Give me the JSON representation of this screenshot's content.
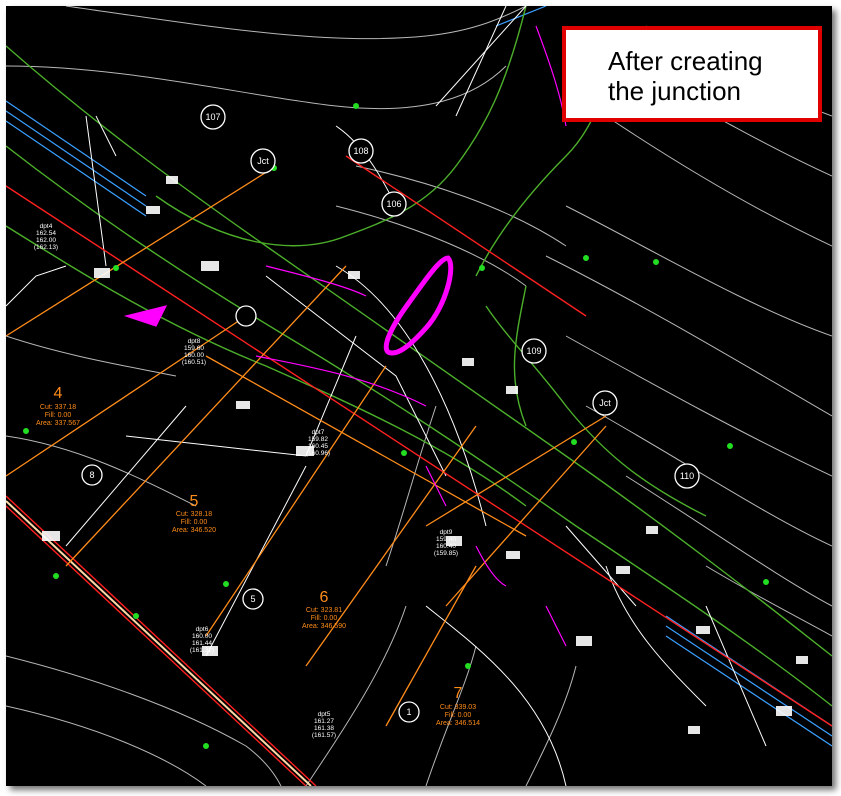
{
  "callout": {
    "line1": "After creating",
    "line2": "the junction"
  },
  "colors": {
    "background": "#000000",
    "contour": "#d8d8d8",
    "road_edge": "#4caf2a",
    "centerline": "#ff2020",
    "parcel": "#ff8c1a",
    "junction_highlight": "#ff00ff",
    "callout_border": "#e00000",
    "point_marker": "#22dd22",
    "blue_line": "#3aa0ff"
  },
  "node_labels": [
    "107",
    "Jct",
    "108",
    "109",
    "Jct",
    "110",
    "8",
    "5",
    "1",
    "106"
  ],
  "lots": [
    {
      "number": "4",
      "cut": "Cut: 337.18",
      "fill": "Fill: 0.00",
      "area": "Area: 337.567"
    },
    {
      "number": "5",
      "cut": "Cut: 328.18",
      "fill": "Fill: 0.00",
      "area": "Area: 346.520"
    },
    {
      "number": "6",
      "cut": "Cut: 323.81",
      "fill": "Fill: 0.00",
      "area": "Area: 346.590"
    },
    {
      "number": "7",
      "cut": "Cut: 339.03",
      "fill": "Fill: 0.00",
      "area": "Area: 346.514"
    }
  ],
  "elevation_tags": [
    {
      "lines": [
        "dpt8",
        "159.60",
        "160.00",
        "(160.51)"
      ]
    },
    {
      "lines": [
        "dpt7",
        "159.82",
        "160.45",
        "(160.96)"
      ]
    },
    {
      "lines": [
        "dpt9",
        "159.40",
        "160.40",
        "(159.85)"
      ]
    },
    {
      "lines": [
        "dpt6",
        "160.00",
        "161.44",
        "(161.32)"
      ]
    },
    {
      "lines": [
        "dpt5",
        "161.27",
        "161.38",
        "(161.57)"
      ]
    },
    {
      "lines": [
        "dpt4",
        "162.54",
        "162.00",
        "(162.13)"
      ]
    }
  ]
}
